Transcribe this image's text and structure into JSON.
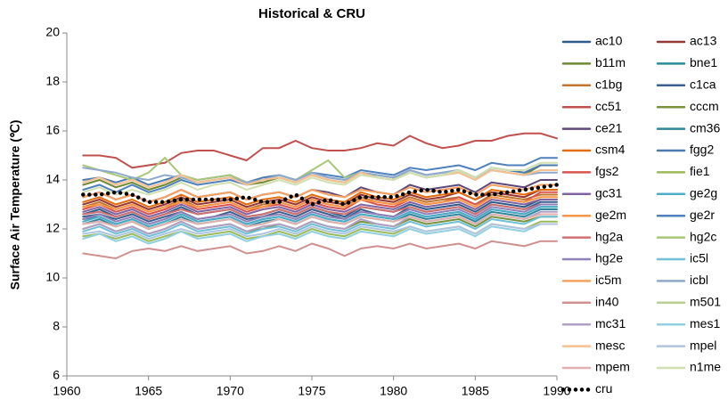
{
  "chart_data": {
    "type": "line",
    "title": "Historical & CRU",
    "y_label": "Surface Air Temperature (℃)",
    "x": [
      1961,
      1962,
      1963,
      1964,
      1965,
      1966,
      1967,
      1968,
      1969,
      1970,
      1971,
      1972,
      1973,
      1974,
      1975,
      1976,
      1977,
      1978,
      1979,
      1980,
      1981,
      1982,
      1983,
      1984,
      1985,
      1986,
      1987,
      1988,
      1989,
      1990
    ],
    "xlim": [
      1960,
      1990
    ],
    "xticks": [
      1960,
      1965,
      1970,
      1975,
      1980,
      1985,
      1990
    ],
    "ylim": [
      6,
      20
    ],
    "yticks": [
      6,
      8,
      10,
      12,
      14,
      16,
      18,
      20
    ],
    "grid": false,
    "legend": "right",
    "series": [
      {
        "name": "ac10",
        "color": "#2e5c8a",
        "values": [
          12.6,
          12.8,
          12.5,
          12.7,
          12.4,
          12.6,
          12.9,
          12.6,
          12.7,
          12.8,
          12.5,
          12.6,
          12.8,
          12.6,
          12.9,
          12.7,
          12.5,
          12.9,
          12.8,
          12.7,
          13.0,
          12.8,
          12.9,
          13.0,
          12.7,
          13.1,
          13.0,
          12.9,
          13.2,
          13.2
        ]
      },
      {
        "name": "ac13",
        "color": "#953735",
        "values": [
          13.0,
          13.2,
          12.9,
          13.1,
          12.8,
          13.0,
          13.3,
          13.0,
          13.1,
          13.2,
          12.9,
          13.1,
          13.2,
          13.0,
          13.3,
          13.1,
          13.0,
          13.4,
          13.2,
          13.1,
          13.4,
          13.2,
          13.3,
          13.5,
          13.2,
          13.5,
          13.4,
          13.3,
          13.6,
          13.6
        ]
      },
      {
        "name": "b11m",
        "color": "#6f8a35",
        "values": [
          13.8,
          14.0,
          13.7,
          13.9,
          13.6,
          13.8,
          14.1,
          13.9,
          14.0,
          14.1,
          13.8,
          13.9,
          14.1,
          13.9,
          14.2,
          14.0,
          13.9,
          14.3,
          14.1,
          14.0,
          14.3,
          14.1,
          14.2,
          14.4,
          14.1,
          14.4,
          14.3,
          14.2,
          14.6,
          14.6
        ]
      },
      {
        "name": "bne1",
        "color": "#2a8a9e",
        "values": [
          12.4,
          12.5,
          12.2,
          12.4,
          12.1,
          12.3,
          12.6,
          12.3,
          12.4,
          12.5,
          12.2,
          12.4,
          12.5,
          12.3,
          12.6,
          12.4,
          12.3,
          12.6,
          12.5,
          12.4,
          12.7,
          12.5,
          12.6,
          12.7,
          12.4,
          12.8,
          12.7,
          12.6,
          12.9,
          12.9
        ]
      },
      {
        "name": "c1bg",
        "color": "#c0762f",
        "values": [
          12.9,
          13.1,
          12.8,
          13.0,
          12.7,
          12.9,
          13.2,
          12.9,
          13.0,
          13.1,
          12.8,
          13.0,
          13.1,
          12.9,
          13.2,
          13.0,
          12.9,
          13.3,
          13.1,
          13.0,
          13.3,
          13.1,
          13.2,
          13.3,
          13.0,
          13.4,
          13.3,
          13.2,
          13.4,
          13.4
        ]
      },
      {
        "name": "c1ca",
        "color": "#3b5f8f",
        "values": [
          12.5,
          12.6,
          12.4,
          12.6,
          12.3,
          12.5,
          12.7,
          12.4,
          12.5,
          12.7,
          12.4,
          12.5,
          12.7,
          12.5,
          12.8,
          12.6,
          12.4,
          12.8,
          12.6,
          12.5,
          12.9,
          12.7,
          12.8,
          12.9,
          12.6,
          13.0,
          12.9,
          12.8,
          13.1,
          13.1
        ]
      },
      {
        "name": "cc51",
        "color": "#c0504d",
        "values": [
          15.0,
          15.0,
          14.9,
          14.5,
          14.6,
          14.7,
          15.1,
          15.2,
          15.2,
          15.0,
          14.8,
          15.3,
          15.3,
          15.6,
          15.3,
          15.2,
          15.2,
          15.3,
          15.5,
          15.4,
          15.8,
          15.5,
          15.3,
          15.4,
          15.6,
          15.6,
          15.8,
          15.9,
          15.9,
          15.7
        ]
      },
      {
        "name": "cccm",
        "color": "#77933c",
        "values": [
          12.0,
          12.2,
          11.9,
          12.1,
          11.8,
          12.0,
          12.3,
          12.0,
          12.1,
          12.2,
          11.9,
          12.0,
          12.2,
          12.0,
          12.3,
          12.1,
          12.0,
          12.3,
          12.2,
          12.1,
          12.4,
          12.2,
          12.3,
          12.4,
          12.1,
          12.5,
          12.4,
          12.3,
          12.5,
          12.5
        ]
      },
      {
        "name": "ce21",
        "color": "#5f497a",
        "values": [
          13.3,
          13.5,
          13.2,
          13.4,
          13.1,
          13.3,
          13.6,
          13.3,
          13.4,
          13.5,
          13.2,
          13.4,
          13.5,
          13.3,
          13.6,
          13.5,
          13.3,
          13.7,
          13.5,
          13.4,
          13.8,
          13.6,
          13.7,
          13.8,
          13.5,
          13.9,
          13.8,
          13.7,
          14.0,
          14.0
        ]
      },
      {
        "name": "cm36",
        "color": "#31859c",
        "values": [
          12.2,
          12.4,
          12.1,
          12.3,
          12.0,
          12.2,
          12.5,
          12.2,
          12.3,
          12.4,
          12.1,
          12.3,
          12.4,
          12.2,
          12.5,
          12.3,
          12.2,
          12.5,
          12.4,
          12.3,
          12.6,
          12.4,
          12.5,
          12.6,
          12.3,
          12.7,
          12.6,
          12.5,
          12.8,
          12.8
        ]
      },
      {
        "name": "csm4",
        "color": "#e46c0a",
        "values": [
          13.1,
          13.3,
          13.0,
          13.2,
          12.9,
          13.1,
          13.4,
          13.1,
          13.2,
          13.3,
          13.0,
          13.2,
          13.3,
          13.1,
          13.4,
          13.2,
          13.1,
          13.5,
          13.3,
          13.2,
          13.5,
          13.3,
          13.4,
          13.5,
          13.2,
          13.6,
          13.5,
          13.4,
          13.6,
          13.6
        ]
      },
      {
        "name": "fgg2",
        "color": "#4a7ab0",
        "values": [
          14.0,
          14.1,
          13.9,
          14.1,
          13.8,
          14.0,
          14.2,
          14.0,
          14.1,
          14.2,
          13.9,
          14.1,
          14.2,
          14.0,
          14.3,
          14.1,
          14.0,
          14.3,
          14.2,
          14.1,
          14.4,
          14.2,
          14.3,
          14.4,
          14.1,
          14.5,
          14.4,
          14.3,
          14.6,
          14.6
        ]
      },
      {
        "name": "fgs2",
        "color": "#d9534f",
        "values": [
          12.8,
          13.0,
          12.7,
          12.9,
          12.6,
          12.8,
          13.1,
          12.8,
          12.9,
          13.0,
          12.7,
          12.9,
          13.0,
          12.8,
          13.1,
          12.9,
          12.8,
          13.2,
          13.0,
          12.9,
          13.2,
          13.0,
          13.1,
          13.3,
          13.0,
          13.3,
          13.2,
          13.1,
          13.5,
          13.5
        ]
      },
      {
        "name": "fie1",
        "color": "#9bbb59",
        "values": [
          11.7,
          11.8,
          11.6,
          11.8,
          11.5,
          11.7,
          11.9,
          11.7,
          11.8,
          11.9,
          11.6,
          11.7,
          11.9,
          11.7,
          12.0,
          11.8,
          11.7,
          12.0,
          11.9,
          11.8,
          12.1,
          11.9,
          12.0,
          12.1,
          11.8,
          12.2,
          12.1,
          12.0,
          12.3,
          12.3
        ]
      },
      {
        "name": "gc31",
        "color": "#8064a2",
        "values": [
          12.7,
          12.9,
          12.6,
          12.8,
          12.5,
          12.7,
          13.0,
          12.7,
          12.8,
          12.9,
          12.6,
          12.8,
          12.9,
          12.7,
          13.0,
          12.8,
          12.7,
          13.0,
          12.9,
          12.8,
          13.1,
          12.9,
          13.0,
          13.1,
          12.8,
          13.2,
          13.1,
          13.0,
          13.2,
          13.2
        ]
      },
      {
        "name": "ge2g",
        "color": "#4bacc6",
        "values": [
          12.3,
          12.5,
          12.2,
          12.4,
          12.1,
          12.3,
          12.6,
          12.3,
          12.4,
          12.5,
          12.2,
          12.4,
          12.5,
          12.3,
          12.6,
          12.4,
          12.3,
          12.6,
          12.5,
          12.4,
          12.7,
          12.5,
          12.6,
          12.7,
          12.4,
          12.8,
          12.7,
          12.6,
          12.9,
          12.9
        ]
      },
      {
        "name": "ge2m",
        "color": "#f79646",
        "values": [
          12.9,
          13.0,
          12.8,
          13.0,
          12.7,
          12.9,
          13.1,
          12.9,
          13.0,
          13.1,
          12.8,
          12.9,
          13.1,
          12.9,
          13.2,
          13.0,
          12.9,
          13.2,
          13.1,
          13.0,
          13.2,
          13.0,
          13.1,
          13.2,
          12.9,
          13.3,
          13.2,
          13.1,
          13.3,
          13.3
        ]
      },
      {
        "name": "ge2r",
        "color": "#4f81bd",
        "values": [
          13.6,
          13.8,
          13.5,
          13.8,
          13.5,
          13.7,
          14.0,
          13.8,
          13.9,
          14.0,
          13.8,
          14.0,
          14.2,
          14.0,
          14.3,
          14.2,
          14.1,
          14.4,
          14.3,
          14.2,
          14.5,
          14.4,
          14.5,
          14.6,
          14.4,
          14.7,
          14.6,
          14.6,
          14.9,
          14.9
        ]
      },
      {
        "name": "hg2a",
        "color": "#d07070",
        "values": [
          12.6,
          12.7,
          12.5,
          12.7,
          12.4,
          12.6,
          12.8,
          12.6,
          12.7,
          12.8,
          12.5,
          12.6,
          12.8,
          12.6,
          12.9,
          12.7,
          12.6,
          12.9,
          12.8,
          12.7,
          12.9,
          12.7,
          12.8,
          12.9,
          12.6,
          13.0,
          12.9,
          12.8,
          13.0,
          13.0
        ]
      },
      {
        "name": "hg2c",
        "color": "#a8c878",
        "values": [
          14.6,
          14.4,
          14.2,
          14.0,
          14.3,
          14.9,
          14.2,
          14.0,
          14.1,
          14.2,
          13.9,
          14.0,
          14.2,
          14.0,
          14.4,
          14.8,
          14.1,
          14.3,
          14.2,
          14.1,
          14.3,
          14.1,
          14.2,
          14.3,
          14.0,
          14.4,
          14.3,
          14.2,
          14.4,
          14.4
        ]
      },
      {
        "name": "hg2e",
        "color": "#9080b8",
        "values": [
          12.4,
          12.6,
          12.3,
          12.5,
          12.2,
          12.4,
          12.7,
          12.4,
          12.5,
          12.6,
          12.3,
          12.5,
          12.6,
          12.4,
          12.7,
          12.5,
          12.4,
          12.7,
          12.6,
          12.5,
          12.8,
          12.6,
          12.7,
          12.8,
          12.5,
          12.9,
          12.8,
          12.7,
          13.0,
          13.0
        ]
      },
      {
        "name": "ic5l",
        "color": "#70c0d8",
        "values": [
          11.9,
          12.1,
          11.8,
          12.0,
          11.7,
          11.9,
          12.2,
          11.9,
          12.0,
          12.1,
          11.8,
          12.0,
          12.1,
          11.9,
          12.2,
          12.0,
          11.9,
          12.2,
          12.1,
          12.0,
          12.3,
          12.1,
          12.2,
          12.3,
          12.0,
          12.4,
          12.3,
          12.2,
          12.5,
          12.5
        ]
      },
      {
        "name": "ic5m",
        "color": "#f8a060",
        "values": [
          13.3,
          13.5,
          13.2,
          13.4,
          13.1,
          13.3,
          13.6,
          13.3,
          13.4,
          13.5,
          13.2,
          13.4,
          13.5,
          13.3,
          13.6,
          13.4,
          13.3,
          13.6,
          13.5,
          13.4,
          13.7,
          13.5,
          13.6,
          13.7,
          13.4,
          13.8,
          13.7,
          13.6,
          13.8,
          13.8
        ]
      },
      {
        "name": "icbl",
        "color": "#8faacc",
        "values": [
          14.5,
          14.4,
          14.3,
          14.1,
          14.0,
          14.2,
          14.1,
          13.9,
          14.0,
          14.1,
          13.9,
          14.0,
          14.2,
          14.0,
          14.3,
          14.1,
          14.0,
          14.3,
          14.2,
          14.1,
          14.4,
          14.2,
          14.3,
          14.4,
          14.1,
          14.4,
          14.3,
          14.2,
          14.3,
          14.3
        ]
      },
      {
        "name": "in40",
        "color": "#d09090",
        "values": [
          11.0,
          10.9,
          10.8,
          11.1,
          11.2,
          11.1,
          11.3,
          11.1,
          11.2,
          11.3,
          11.0,
          11.1,
          11.3,
          11.1,
          11.4,
          11.2,
          10.9,
          11.2,
          11.3,
          11.2,
          11.4,
          11.2,
          11.3,
          11.4,
          11.2,
          11.5,
          11.4,
          11.3,
          11.5,
          11.5
        ]
      },
      {
        "name": "m501",
        "color": "#b8d090",
        "values": [
          12.2,
          12.3,
          12.1,
          12.3,
          12.0,
          12.2,
          12.4,
          12.2,
          12.3,
          12.4,
          12.1,
          12.2,
          12.4,
          12.2,
          12.5,
          12.3,
          12.2,
          12.5,
          12.4,
          12.3,
          12.5,
          12.3,
          12.4,
          12.5,
          12.2,
          12.6,
          12.5,
          12.4,
          12.6,
          12.6
        ]
      },
      {
        "name": "mc31",
        "color": "#b0a0c8",
        "values": [
          12.0,
          12.2,
          11.9,
          12.1,
          11.8,
          12.0,
          12.3,
          12.0,
          12.1,
          12.2,
          11.9,
          12.1,
          12.2,
          12.0,
          12.3,
          12.1,
          12.0,
          12.4,
          12.2,
          12.1,
          12.5,
          12.3,
          12.4,
          12.5,
          12.2,
          12.6,
          12.5,
          12.4,
          12.7,
          12.7
        ]
      },
      {
        "name": "mes1",
        "color": "#90d0e0",
        "values": [
          11.6,
          11.8,
          11.5,
          11.7,
          11.4,
          11.6,
          11.9,
          11.6,
          11.7,
          11.8,
          11.5,
          11.7,
          11.8,
          11.6,
          11.9,
          11.7,
          11.6,
          11.9,
          11.8,
          11.7,
          12.0,
          11.8,
          11.9,
          12.0,
          11.7,
          12.1,
          12.0,
          11.9,
          12.2,
          12.2
        ]
      },
      {
        "name": "mesc",
        "color": "#f8c090",
        "values": [
          13.9,
          14.1,
          13.8,
          14.0,
          13.7,
          13.9,
          14.2,
          13.9,
          14.0,
          14.1,
          13.8,
          14.0,
          14.1,
          13.9,
          14.2,
          14.0,
          13.9,
          14.3,
          14.1,
          14.0,
          14.3,
          14.1,
          14.2,
          14.3,
          14.0,
          14.4,
          14.3,
          14.2,
          14.4,
          14.4
        ]
      },
      {
        "name": "mpel",
        "color": "#b0c4e0",
        "values": [
          11.8,
          11.9,
          11.7,
          11.9,
          11.6,
          11.8,
          12.0,
          11.8,
          11.9,
          12.0,
          11.7,
          11.8,
          12.0,
          11.8,
          12.1,
          11.9,
          11.8,
          12.1,
          12.0,
          11.9,
          12.1,
          11.9,
          12.0,
          12.1,
          11.8,
          12.2,
          12.1,
          12.0,
          12.2,
          12.2
        ]
      },
      {
        "name": "mpem",
        "color": "#e0b0b0",
        "values": [
          12.2,
          12.3,
          12.1,
          12.3,
          12.0,
          12.2,
          12.4,
          12.2,
          12.3,
          12.4,
          12.1,
          12.2,
          12.4,
          12.2,
          12.5,
          12.3,
          12.2,
          12.5,
          12.4,
          12.3,
          12.5,
          12.3,
          12.4,
          12.5,
          12.2,
          12.6,
          12.5,
          12.4,
          12.6,
          12.6
        ]
      },
      {
        "name": "n1me",
        "color": "#d0e0b0",
        "values": [
          13.5,
          13.7,
          13.4,
          13.6,
          13.4,
          13.6,
          13.9,
          13.6,
          13.8,
          13.9,
          13.6,
          13.8,
          14.0,
          13.8,
          14.1,
          13.9,
          13.8,
          14.2,
          14.1,
          14.0,
          14.3,
          14.1,
          14.2,
          14.4,
          14.1,
          14.5,
          14.4,
          14.4,
          14.7,
          14.7
        ]
      },
      {
        "name": "cru",
        "color": "#000000",
        "style": "dotted",
        "values": [
          13.4,
          13.4,
          13.5,
          13.4,
          13.1,
          13.1,
          13.2,
          13.2,
          13.2,
          13.2,
          13.3,
          13.1,
          13.1,
          13.4,
          13.0,
          13.2,
          13.0,
          13.3,
          13.3,
          13.3,
          13.5,
          13.6,
          13.5,
          13.6,
          13.4,
          13.4,
          13.5,
          13.6,
          13.7,
          13.8
        ]
      }
    ]
  }
}
